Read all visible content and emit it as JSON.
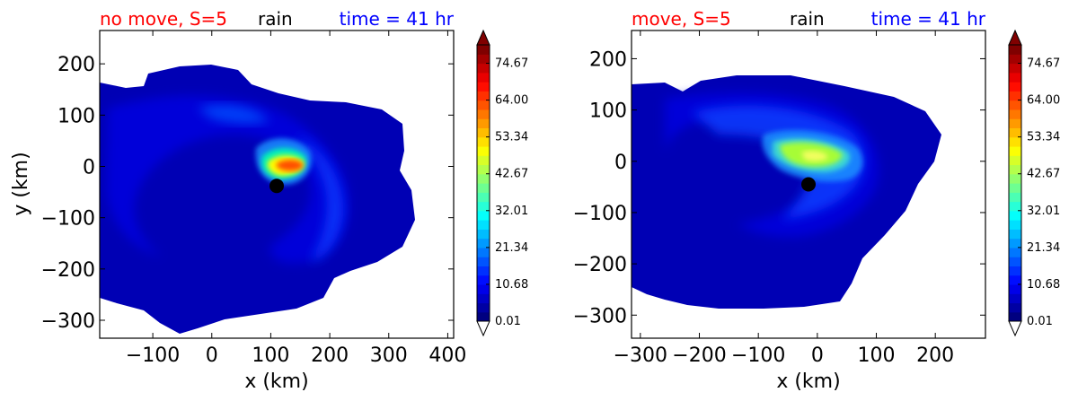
{
  "colors": {
    "title_left": "#ff0000",
    "title_mid": "#000000",
    "title_right": "#0000ff",
    "center_marker": "#000000"
  },
  "chart_data": [
    {
      "type": "heatmap",
      "title_left": "no move, S=5",
      "title_mid": "rain",
      "title_right": "time = 41 hr",
      "xlabel": "x (km)",
      "ylabel": "y (km)",
      "xlim": [
        -190,
        410
      ],
      "ylim": [
        -335,
        265
      ],
      "xticks": [
        -100,
        0,
        100,
        200,
        300,
        400
      ],
      "xtick_labels": [
        "−100",
        "0",
        "100",
        "200",
        "300",
        "400"
      ],
      "yticks": [
        200,
        100,
        0,
        -100,
        -200,
        -300
      ],
      "ytick_labels": [
        "200",
        "100",
        "0",
        "−100",
        "−200",
        "−300"
      ],
      "center": {
        "x": 110,
        "y": -38
      },
      "max_rain": {
        "x": 140,
        "y": 0
      },
      "colorbar": {
        "ticks": [
          0.01,
          10.68,
          21.34,
          32.01,
          42.67,
          53.34,
          64.0,
          74.67
        ],
        "tick_labels": [
          "0.01",
          "10.68",
          "21.34",
          "32.01",
          "42.67",
          "53.34",
          "64.00",
          "74.67"
        ],
        "vmin": 0.01,
        "vmax": 80,
        "extend": "both",
        "colormap": "jet"
      }
    },
    {
      "type": "heatmap",
      "title_left": "move, S=5",
      "title_mid": "rain",
      "title_right": "time = 41 hr",
      "xlabel": "x (km)",
      "ylabel": "",
      "xlim": [
        -315,
        285
      ],
      "ylim": [
        -345,
        255
      ],
      "xticks": [
        -300,
        -200,
        -100,
        0,
        100,
        200
      ],
      "xtick_labels": [
        "−300",
        "−200",
        "−100",
        "0",
        "100",
        "200"
      ],
      "yticks": [
        200,
        100,
        0,
        -100,
        -200,
        -300
      ],
      "ytick_labels": [
        "200",
        "100",
        "0",
        "−100",
        "−200",
        "−300"
      ],
      "center": {
        "x": -15,
        "y": -45
      },
      "max_rain": {
        "x": 0,
        "y": 10
      },
      "colorbar": {
        "ticks": [
          0.01,
          10.68,
          21.34,
          32.01,
          42.67,
          53.34,
          64.0,
          74.67
        ],
        "tick_labels": [
          "0.01",
          "10.68",
          "21.34",
          "32.01",
          "42.67",
          "53.34",
          "64.00",
          "74.67"
        ],
        "vmin": 0.01,
        "vmax": 80,
        "extend": "both",
        "colormap": "jet"
      }
    }
  ]
}
